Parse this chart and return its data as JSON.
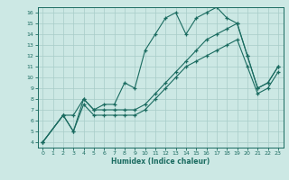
{
  "xlabel": "Humidex (Indice chaleur)",
  "bg_color": "#cce8e4",
  "grid_color": "#a8ccc8",
  "line_color": "#1a6b60",
  "xlim": [
    -0.5,
    23.5
  ],
  "ylim": [
    3.5,
    16.5
  ],
  "xticks": [
    0,
    1,
    2,
    3,
    4,
    5,
    6,
    7,
    8,
    9,
    10,
    11,
    12,
    13,
    14,
    15,
    16,
    17,
    18,
    19,
    20,
    21,
    22,
    23
  ],
  "yticks": [
    4,
    5,
    6,
    7,
    8,
    9,
    10,
    11,
    12,
    13,
    14,
    15,
    16
  ],
  "curve1_x": [
    0,
    2,
    3,
    4,
    5,
    6,
    7,
    8,
    9,
    10,
    11,
    12,
    13,
    14,
    15,
    16,
    17,
    18,
    19,
    20,
    21,
    22,
    23
  ],
  "curve1_y": [
    4,
    6.5,
    6.5,
    8.0,
    7.0,
    7.5,
    7.5,
    9.5,
    9.0,
    12.5,
    14.0,
    15.5,
    16.0,
    14.0,
    15.5,
    16.0,
    16.5,
    15.5,
    15.0,
    12.0,
    9.0,
    9.5,
    11.0
  ],
  "curve2_x": [
    0,
    2,
    3,
    4,
    5,
    6,
    7,
    8,
    9,
    10,
    11,
    12,
    13,
    14,
    15,
    16,
    17,
    18,
    19,
    20,
    21,
    22,
    23
  ],
  "curve2_y": [
    4,
    6.5,
    5.0,
    8.0,
    7.0,
    7.0,
    7.0,
    7.0,
    7.0,
    7.5,
    8.5,
    9.5,
    10.5,
    11.5,
    12.5,
    13.5,
    14.0,
    14.5,
    15.0,
    12.0,
    9.0,
    9.5,
    11.0
  ],
  "curve3_x": [
    0,
    2,
    3,
    4,
    5,
    6,
    7,
    8,
    9,
    10,
    11,
    12,
    13,
    14,
    15,
    16,
    17,
    18,
    19,
    20,
    21,
    22,
    23
  ],
  "curve3_y": [
    4,
    6.5,
    5.0,
    7.5,
    6.5,
    6.5,
    6.5,
    6.5,
    6.5,
    7.0,
    8.0,
    9.0,
    10.0,
    11.0,
    11.5,
    12.0,
    12.5,
    13.0,
    13.5,
    11.0,
    8.5,
    9.0,
    10.5
  ]
}
